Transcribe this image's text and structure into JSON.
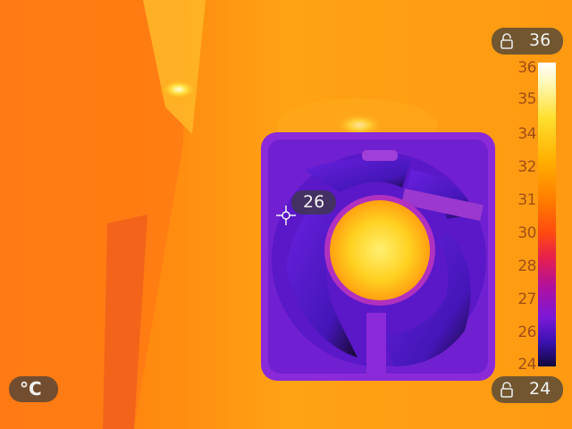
{
  "scale": {
    "max_value": "36",
    "min_value": "24",
    "ticks": [
      "36",
      "35",
      "34",
      "32",
      "31",
      "30",
      "28",
      "27",
      "26",
      "24"
    ]
  },
  "unit": "°C",
  "spot": {
    "value": "26"
  },
  "icons": {
    "lock": "lock-icon",
    "crosshair": "crosshair-icon"
  },
  "colors": {
    "hot": "#ffffff",
    "warm": "#ffb000",
    "cold": "#10083a",
    "background": "#ff7a00"
  }
}
